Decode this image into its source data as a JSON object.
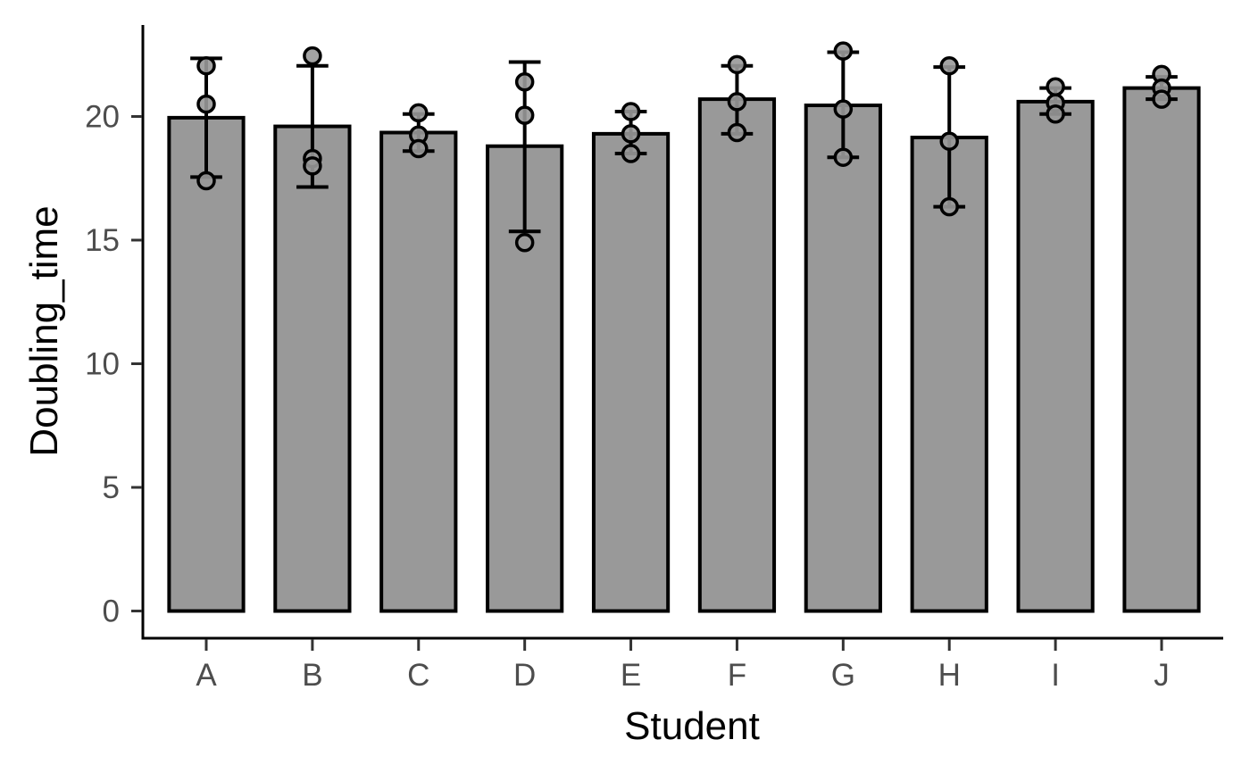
{
  "chart_data": {
    "type": "bar",
    "xlabel": "Student",
    "ylabel": "Doubling_time",
    "categories": [
      "A",
      "B",
      "C",
      "D",
      "E",
      "F",
      "G",
      "H",
      "I",
      "J"
    ],
    "values": [
      19.95,
      19.6,
      19.35,
      18.8,
      19.3,
      20.7,
      20.45,
      19.15,
      20.6,
      21.15
    ],
    "error_low": [
      17.55,
      17.15,
      18.6,
      15.35,
      18.5,
      19.3,
      18.35,
      16.35,
      20.1,
      20.7
    ],
    "error_high": [
      22.35,
      22.05,
      20.1,
      22.2,
      20.2,
      22.05,
      22.6,
      22.0,
      21.15,
      21.6
    ],
    "points": [
      [
        22.05,
        20.5,
        17.4
      ],
      [
        22.45,
        18.3,
        18.0
      ],
      [
        20.15,
        19.25,
        18.7
      ],
      [
        21.4,
        20.05,
        14.9
      ],
      [
        20.2,
        19.3,
        18.5
      ],
      [
        22.1,
        20.6,
        19.35
      ],
      [
        22.65,
        20.3,
        18.35
      ],
      [
        22.05,
        19.0,
        16.35
      ],
      [
        21.2,
        20.55,
        20.1
      ],
      [
        21.7,
        21.15,
        20.7
      ]
    ],
    "y_ticks": [
      0,
      5,
      10,
      15,
      20
    ],
    "ylim": [
      -1.1,
      23.7
    ],
    "grid": false,
    "legend": "none"
  }
}
